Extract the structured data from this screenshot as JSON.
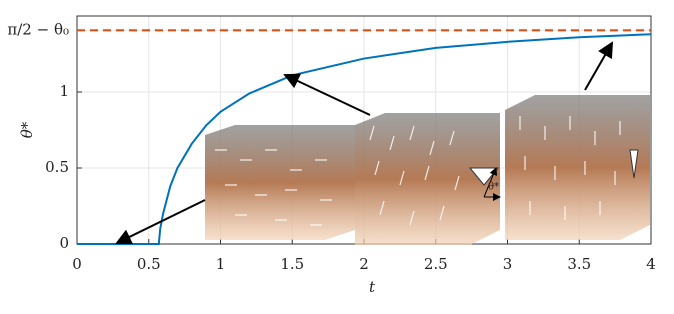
{
  "chart_data": {
    "type": "line",
    "x_label": "t",
    "y_label": "θ*",
    "x": [
      0,
      0.5,
      0.57,
      0.58,
      0.6,
      0.65,
      0.7,
      0.8,
      0.9,
      1,
      1.2,
      1.5,
      2,
      2.5,
      3,
      3.5,
      4
    ],
    "series": [
      {
        "color": "#0072bd",
        "values": [
          0,
          0,
          0,
          0.1,
          0.2,
          0.38,
          0.5,
          0.66,
          0.78,
          0.87,
          0.99,
          1.11,
          1.22,
          1.29,
          1.33,
          1.36,
          1.38
        ]
      }
    ],
    "reference_line": {
      "value": 1.406,
      "color": "#d95319"
    },
    "xlim": [
      0,
      4
    ],
    "xticks": [
      0,
      0.5,
      1,
      1.5,
      2,
      2.5,
      3,
      3.5,
      4
    ],
    "ylim": [
      0,
      1.5
    ],
    "yticks": [
      0,
      0.5,
      1,
      {
        "value": 1.406,
        "label": "π/2 − θ₀"
      }
    ],
    "grid": true,
    "annotation": "θ*"
  }
}
